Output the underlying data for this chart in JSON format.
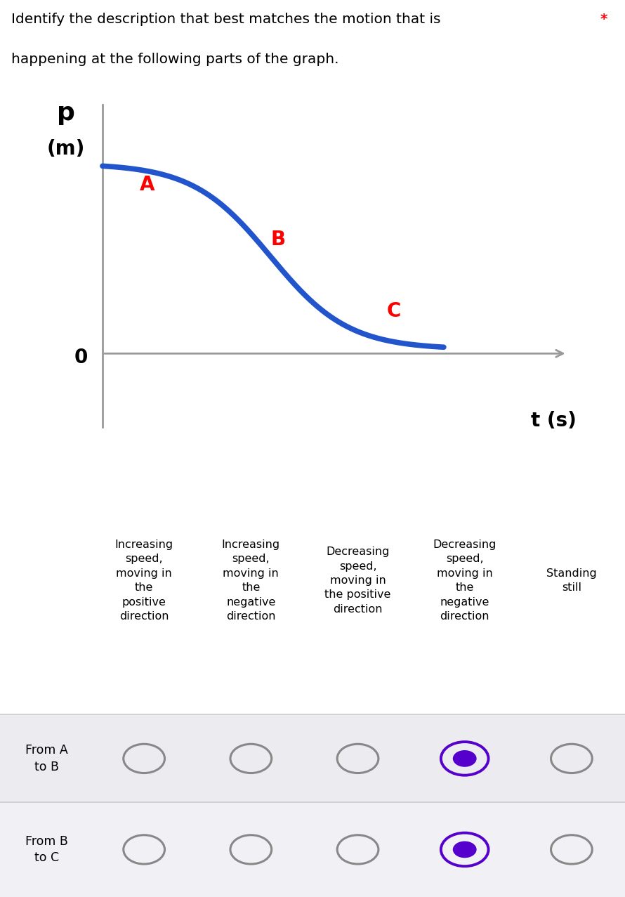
{
  "title_line1": "Identify the description that best matches the motion that is",
  "title_line2": "happening at the following parts of the graph.",
  "asterisk": "*",
  "y_label_top": "p",
  "y_label_bot": "(m)",
  "x_label": "t (s)",
  "zero_label": "0",
  "point_A": "A",
  "point_B": "B",
  "point_C": "C",
  "curve_color": "#2255cc",
  "axis_color": "#999999",
  "background_color": "#ffffff",
  "col_headers": [
    "Increasing\nspeed,\nmoving in\nthe\npositive\ndirection",
    "Increasing\nspeed,\nmoving in\nthe\nnegative\ndirection",
    "Decreasing\nspeed,\nmoving in\nthe positive\ndirection",
    "Decreasing\nspeed,\nmoving in\nthe\nnegative\ndirection",
    "Standing\nstill"
  ],
  "row_labels": [
    "From A\nto B",
    "From B\nto C"
  ],
  "selected_col": [
    3,
    3
  ],
  "table_bg_row0": "#ebebf0",
  "table_bg_row1": "#f0f0f5",
  "table_line_color": "#cccccc",
  "radio_unselected": "#888888",
  "radio_selected_ring": "#5500cc",
  "radio_selected_fill": "#5500cc"
}
